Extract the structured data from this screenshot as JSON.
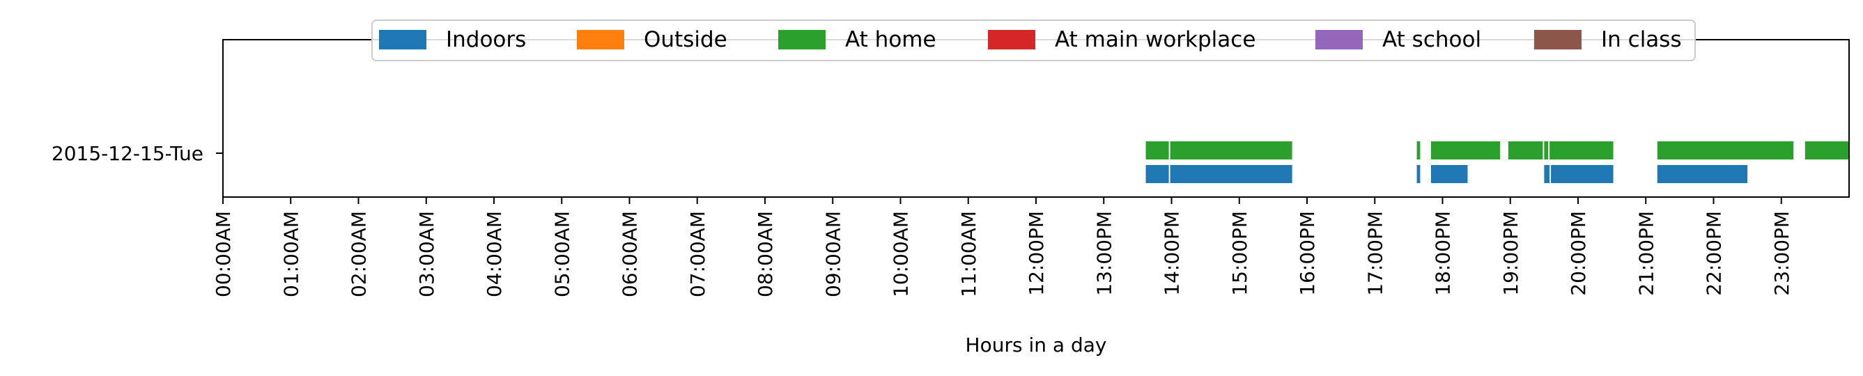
{
  "chart_data": {
    "type": "timeline",
    "title": "",
    "xlabel": "Hours in a day",
    "ylabel": "",
    "xlim": [
      0,
      24
    ],
    "grid": false,
    "legend_position": "top-center",
    "x_ticks": [
      "00:00AM",
      "01:00AM",
      "02:00AM",
      "03:00AM",
      "04:00AM",
      "05:00AM",
      "06:00AM",
      "07:00AM",
      "08:00AM",
      "09:00AM",
      "10:00AM",
      "11:00AM",
      "12:00PM",
      "13:00PM",
      "14:00PM",
      "15:00PM",
      "16:00PM",
      "17:00PM",
      "18:00PM",
      "19:00PM",
      "20:00PM",
      "21:00PM",
      "22:00PM",
      "23:00PM"
    ],
    "categories": [
      "2015-12-15-Tue"
    ],
    "series": [
      {
        "name": "Indoors",
        "color": "#1f77b4",
        "intervals": [
          [
            13.62,
            13.96
          ],
          [
            13.98,
            15.78
          ],
          [
            17.62,
            17.67
          ],
          [
            17.83,
            18.37
          ],
          [
            19.5,
            19.58
          ],
          [
            19.6,
            20.52
          ],
          [
            21.17,
            22.5
          ]
        ]
      },
      {
        "name": "Outside",
        "color": "#ff7f0e",
        "intervals": []
      },
      {
        "name": "At home",
        "color": "#2ca02c",
        "intervals": [
          [
            13.62,
            13.96
          ],
          [
            13.98,
            15.78
          ],
          [
            17.62,
            17.67
          ],
          [
            17.83,
            18.85
          ],
          [
            18.97,
            19.48
          ],
          [
            19.5,
            19.56
          ],
          [
            19.58,
            20.52
          ],
          [
            21.17,
            23.18
          ],
          [
            23.35,
            24.0
          ]
        ]
      },
      {
        "name": "At main workplace",
        "color": "#d62728",
        "intervals": []
      },
      {
        "name": "At school",
        "color": "#9467bd",
        "intervals": []
      },
      {
        "name": "In class",
        "color": "#8c564b",
        "intervals": []
      }
    ]
  }
}
